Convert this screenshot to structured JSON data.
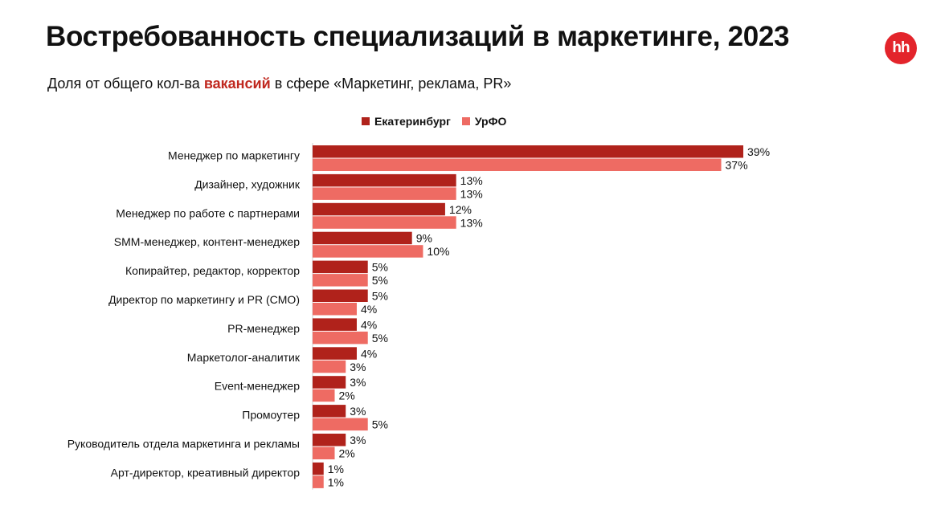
{
  "header": {
    "title": "Востребованность специализаций в маркетинге, 2023",
    "subtitle_before": "Доля от общего кол-ва ",
    "subtitle_highlight": "вакансий",
    "subtitle_after": " в сфере «Маркетинг, реклама, PR»",
    "logo_text": "hh"
  },
  "colors": {
    "series_1": "#b0221b",
    "series_2": "#ee6b63",
    "highlight": "#c0281f",
    "logo": "#e3242b"
  },
  "chart_data": {
    "type": "bar",
    "orientation": "horizontal",
    "title": "Востребованность специализаций в маркетинге, 2023",
    "subtitle": "Доля от общего кол-ва вакансий в сфере «Маркетинг, реклама, PR»",
    "legend_position": "top",
    "value_suffix": "%",
    "xlim": [
      0,
      39
    ],
    "categories": [
      "Менеджер по маркетингу",
      "Дизайнер, художник",
      "Менеджер по работе с партнерами",
      "SMM-менеджер, контент-менеджер",
      "Копирайтер, редактор, корректор",
      "Директор по маркетингу и PR (CMO)",
      "PR-менеджер",
      "Маркетолог-аналитик",
      "Event-менеджер",
      "Промоутер",
      "Руководитель отдела маркетинга и рекламы",
      "Арт-директор, креативный директор"
    ],
    "series": [
      {
        "name": "Екатеринбург",
        "values": [
          39,
          13,
          12,
          9,
          5,
          5,
          4,
          4,
          3,
          3,
          3,
          1
        ]
      },
      {
        "name": "УрФО",
        "values": [
          37,
          13,
          13,
          10,
          5,
          4,
          5,
          3,
          2,
          5,
          2,
          1
        ]
      }
    ]
  }
}
